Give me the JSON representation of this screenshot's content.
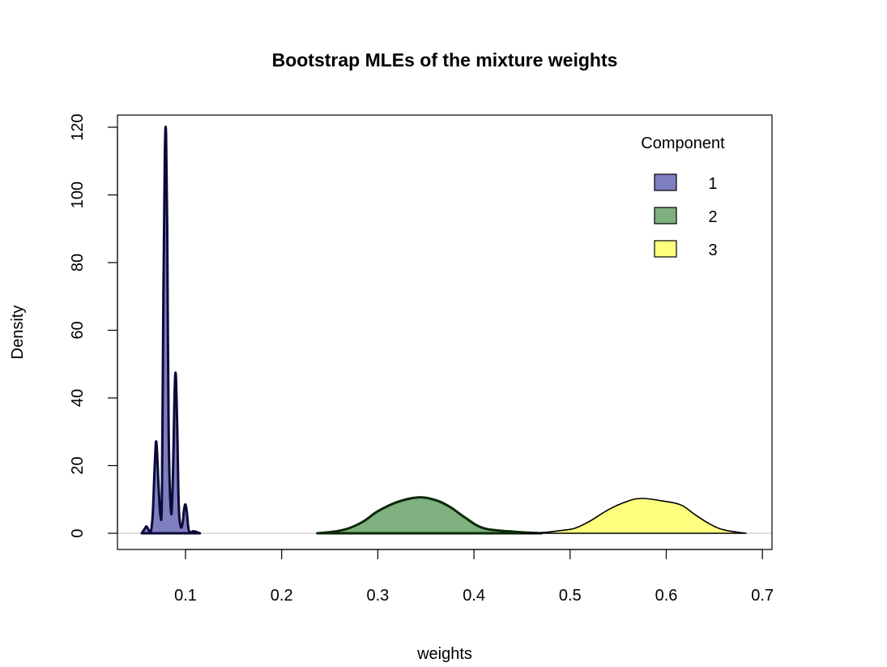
{
  "chart_data": {
    "type": "area",
    "title": "Bootstrap MLEs of the mixture weights",
    "xlabel": "weights",
    "ylabel": "Density",
    "xlim": [
      0.03,
      0.71
    ],
    "ylim": [
      -5,
      125
    ],
    "xticks": [
      0.1,
      0.2,
      0.3,
      0.4,
      0.5,
      0.6,
      0.7
    ],
    "xtick_labels": [
      "0.1",
      "0.2",
      "0.3",
      "0.4",
      "0.5",
      "0.6",
      "0.7"
    ],
    "yticks": [
      0,
      20,
      40,
      60,
      80,
      100,
      120
    ],
    "ytick_labels": [
      "0",
      "20",
      "40",
      "60",
      "80",
      "100",
      "120"
    ],
    "legend": {
      "title": "Component",
      "placement": "top-right"
    },
    "series": [
      {
        "name": "1",
        "fill": "#7f7fbf",
        "stroke": "#0a0a3a",
        "x": [
          0.0545,
          0.058,
          0.0596,
          0.062,
          0.064,
          0.066,
          0.068,
          0.0697,
          0.072,
          0.074,
          0.0755,
          0.077,
          0.0785,
          0.0798,
          0.081,
          0.0825,
          0.085,
          0.087,
          0.0885,
          0.0899,
          0.0915,
          0.093,
          0.095,
          0.097,
          0.0985,
          0.1,
          0.1015,
          0.103,
          0.105,
          0.108,
          0.111,
          0.115
        ],
        "y": [
          0,
          1.5,
          2,
          0.8,
          0.5,
          6,
          20,
          27,
          14,
          5,
          12,
          70,
          112,
          118,
          90,
          30,
          6,
          18,
          40,
          47,
          30,
          8,
          2,
          3,
          7,
          8.5,
          6,
          1.5,
          0.3,
          0.6,
          0.4,
          0
        ]
      },
      {
        "name": "2",
        "fill": "#7fb07f",
        "stroke": "#0a2a0a",
        "x": [
          0.237,
          0.255,
          0.27,
          0.285,
          0.3,
          0.32,
          0.342,
          0.36,
          0.375,
          0.39,
          0.41,
          0.44,
          0.47
        ],
        "y": [
          0,
          0.5,
          1.5,
          3.5,
          6.5,
          9.2,
          10.6,
          9.8,
          7.8,
          4.8,
          1.5,
          0.5,
          0
        ]
      },
      {
        "name": "3",
        "fill": "#ffff7f",
        "stroke": "#000000",
        "x": [
          0.448,
          0.47,
          0.49,
          0.505,
          0.52,
          0.54,
          0.56,
          0.575,
          0.595,
          0.615,
          0.63,
          0.645,
          0.66,
          0.683
        ],
        "y": [
          0,
          0.2,
          0.8,
          1.5,
          3.5,
          7.0,
          9.5,
          10.3,
          9.6,
          8.4,
          5.5,
          2.8,
          1.0,
          0
        ]
      }
    ]
  }
}
